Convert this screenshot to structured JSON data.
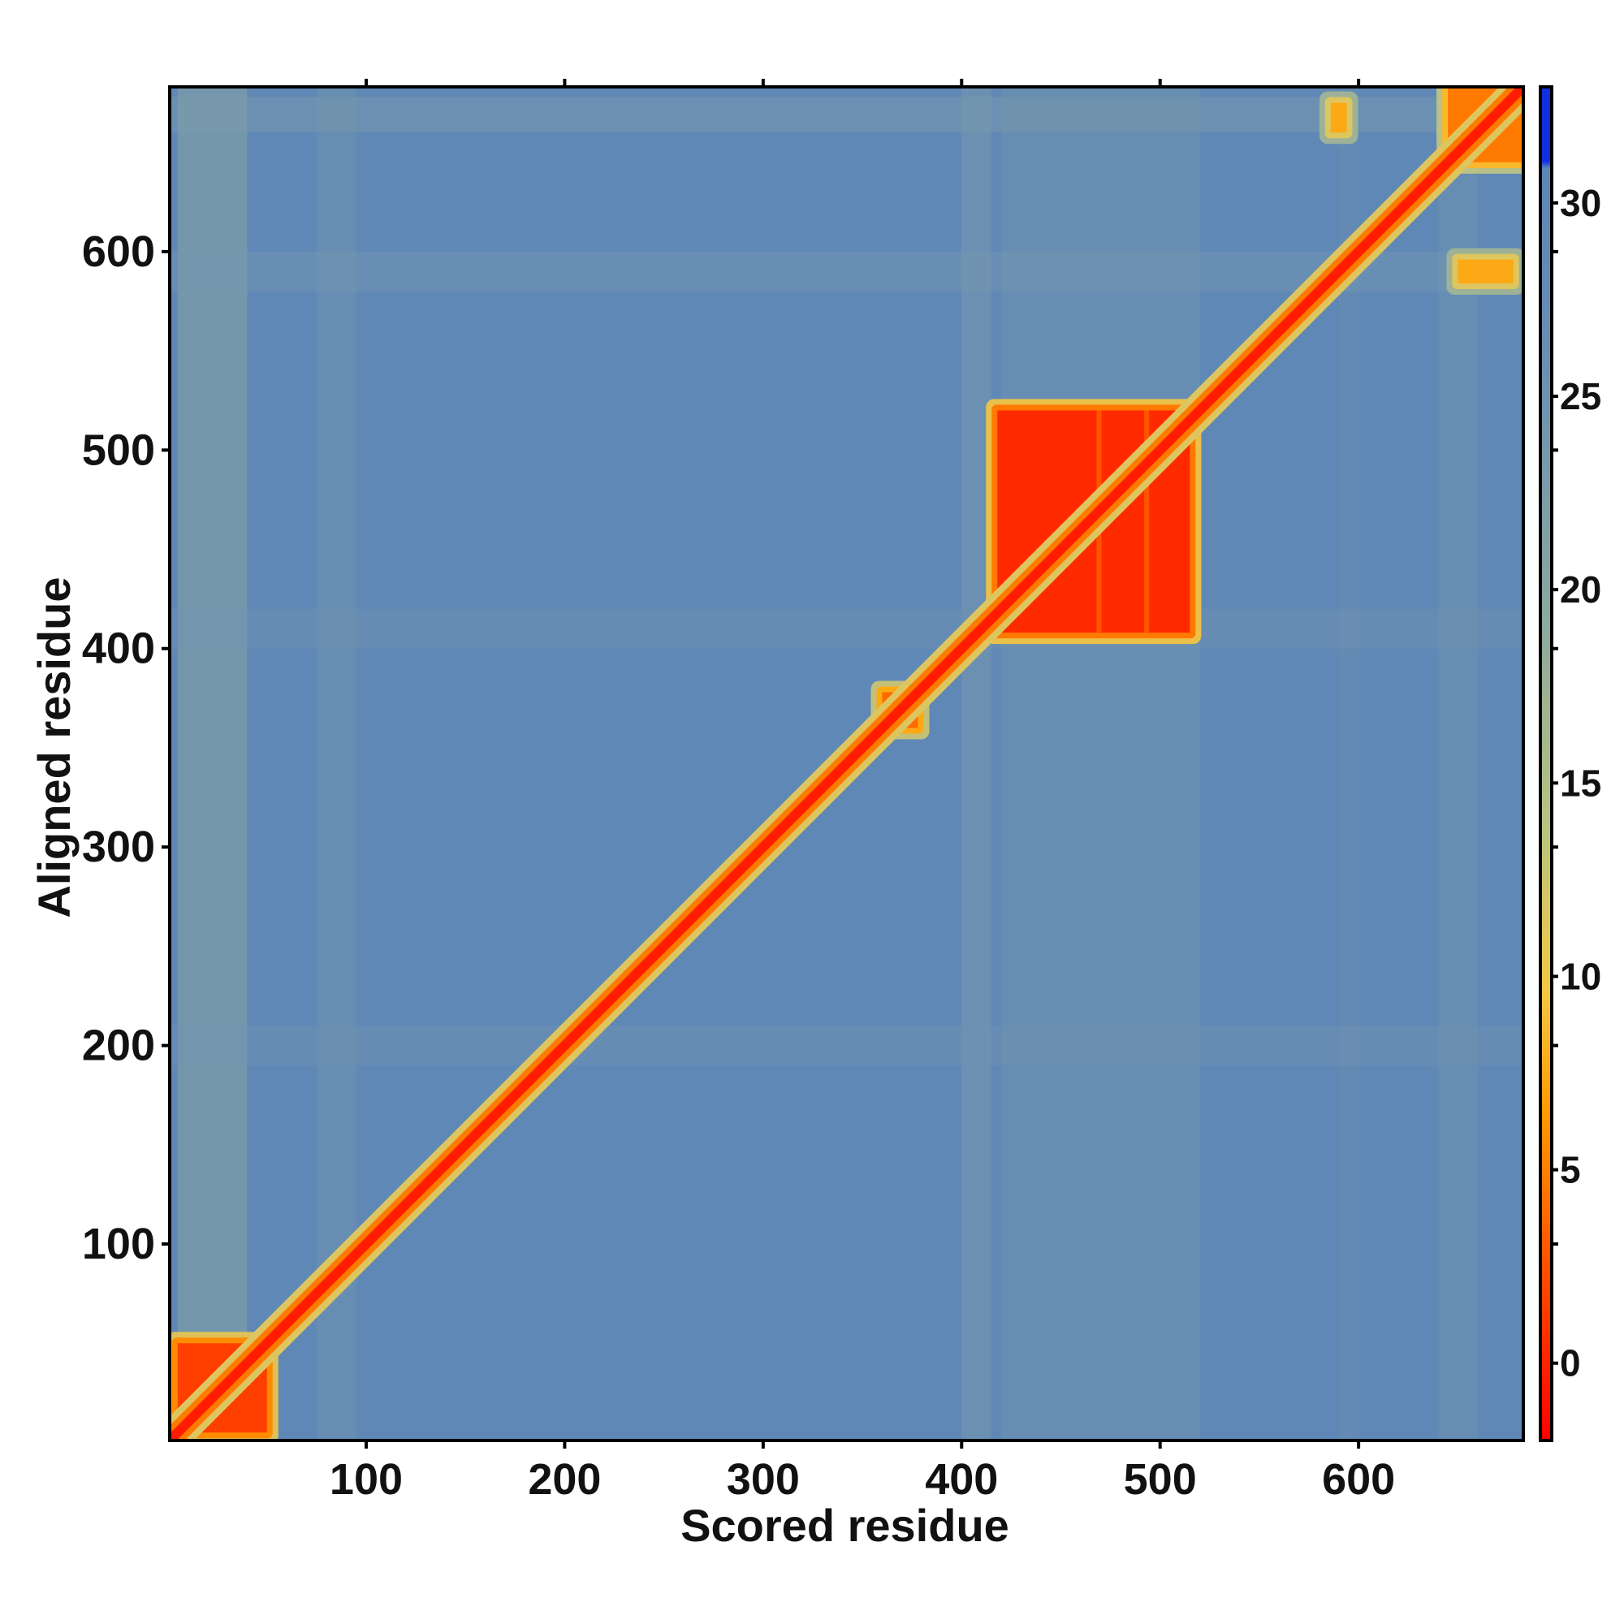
{
  "chart_data": {
    "type": "heatmap",
    "title": "",
    "xlabel": "Scored residue",
    "ylabel": "Aligned residue",
    "xlim": [
      1,
      683
    ],
    "ylim": [
      1,
      683
    ],
    "x_ticks": [
      100,
      200,
      300,
      400,
      500,
      600
    ],
    "y_ticks": [
      100,
      200,
      300,
      400,
      500,
      600
    ],
    "x_tick_labels": [
      "100",
      "200",
      "300",
      "400",
      "500",
      "600"
    ],
    "y_tick_labels": [
      "100",
      "200",
      "300",
      "400",
      "500",
      "600"
    ],
    "colorbar": {
      "range": [
        -2,
        33
      ],
      "ticks": [
        0,
        5,
        10,
        15,
        20,
        25,
        30
      ],
      "tick_labels": [
        "0",
        "5",
        "10",
        "15",
        "20",
        "25",
        "30"
      ],
      "colors": {
        "low": "#ff1a00",
        "mid_low": "#ff8c00",
        "mid": "#e8c030",
        "mid_high": "#a9c07a",
        "high": "#5b86b8",
        "max": "#1030e0"
      }
    },
    "background_value": 28,
    "diagonal_value": 0,
    "low_error_blocks": [
      {
        "x_range": [
          5,
          50
        ],
        "y_range": [
          5,
          50
        ],
        "value": 2
      },
      {
        "x_range": [
          418,
          515
        ],
        "y_range": [
          408,
          520
        ],
        "value": 1
      },
      {
        "x_range": [
          360,
          378
        ],
        "y_range": [
          360,
          378
        ],
        "value": 4
      },
      {
        "x_range": [
          645,
          683
        ],
        "y_range": [
          645,
          683
        ],
        "value": 5
      }
    ],
    "off_diagonal_patches": [
      {
        "x_range": [
          586,
          594
        ],
        "y_range": [
          660,
          675
        ],
        "value": 8
      },
      {
        "x_range": [
          650,
          678
        ],
        "y_range": [
          584,
          596
        ],
        "value": 8
      }
    ]
  }
}
